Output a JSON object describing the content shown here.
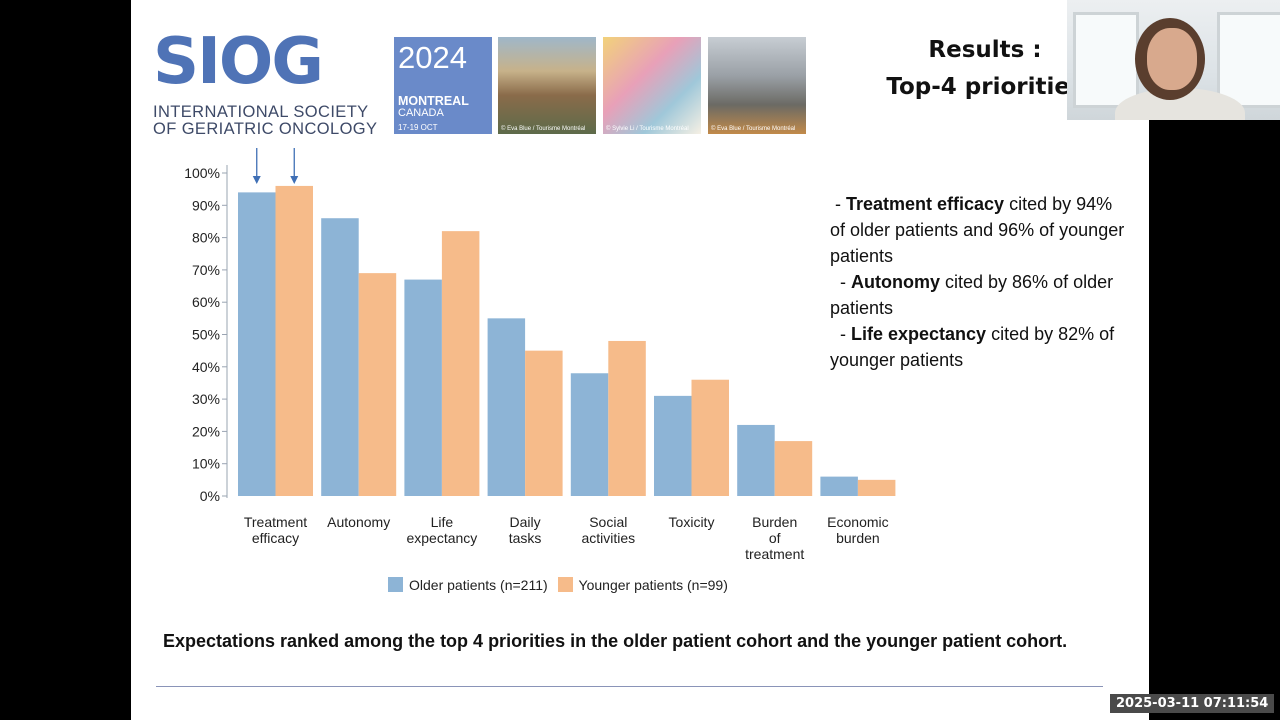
{
  "logo": {
    "wordmark": "SIOG",
    "line1": "INTERNATIONAL SOCIETY",
    "line2": "OF GERIATRIC ONCOLOGY"
  },
  "event": {
    "year": "2024",
    "city": "MONTREAL",
    "country": "CANADA",
    "dates": "17-19 OCT"
  },
  "photos": [
    {
      "caption": "© Eva Blue / Tourisme Montréal"
    },
    {
      "caption": "© Sylvie Li / Tourisme Montréal"
    },
    {
      "caption": "© Eva Blue / Tourisme Montréal"
    }
  ],
  "title": {
    "line1": "Results :",
    "line2": "Top-4 priorities"
  },
  "summary": [
    {
      "prefix": " - ",
      "bold": "Treatment efficacy",
      "rest": " cited by 94% of older patients and 96% of younger patients"
    },
    {
      "prefix": "  - ",
      "bold": "Autonomy",
      "rest": " cited by 86% of older patients"
    },
    {
      "prefix": "  - ",
      "bold": "Life expectancy",
      "rest": " cited by 82% of younger patients"
    }
  ],
  "chart_data": {
    "type": "bar",
    "categories": [
      [
        "Treatment",
        "efficacy"
      ],
      [
        "Autonomy"
      ],
      [
        "Life",
        "expectancy"
      ],
      [
        "Daily",
        "tasks"
      ],
      [
        "Social",
        "activities"
      ],
      [
        "Toxicity"
      ],
      [
        "Burden",
        "of",
        "treatment"
      ],
      [
        "Economic",
        "burden"
      ]
    ],
    "series": [
      {
        "name": "Older patients (n=211)",
        "color": "#8DB4D6",
        "values": [
          94,
          86,
          67,
          55,
          38,
          31,
          22,
          6
        ]
      },
      {
        "name": "Younger patients (n=99)",
        "color": "#F6BB8A",
        "values": [
          96,
          69,
          82,
          45,
          48,
          36,
          17,
          5
        ]
      }
    ],
    "yticks": [
      "0%",
      "10%",
      "20%",
      "30%",
      "40%",
      "50%",
      "60%",
      "70%",
      "80%",
      "90%",
      "100%"
    ],
    "ylim": [
      0,
      100
    ],
    "arrows_on_category": 0,
    "legend_position": "bottom"
  },
  "caption": "Expectations ranked among the top 4 priorities in the older patient cohort and the younger patient cohort.",
  "timestamp": "2025-03-11 07:11:54"
}
